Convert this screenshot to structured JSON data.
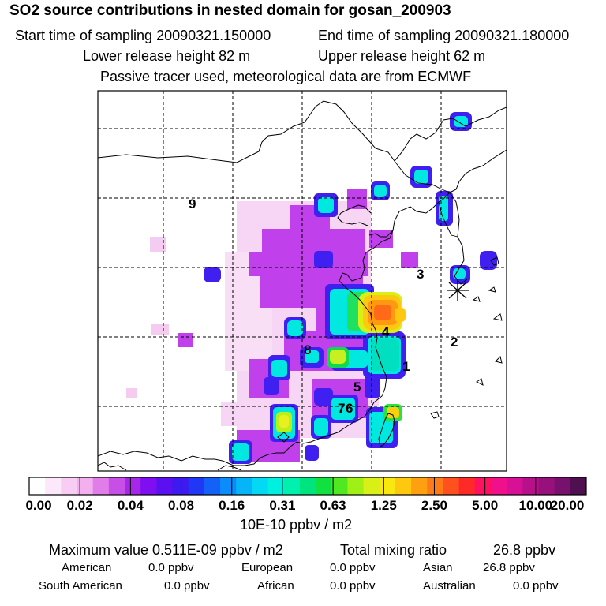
{
  "header": {
    "title": "SO2 source contributions in nested domain for gosan_200903",
    "start_label": "Start time of sampling 20090321.150000",
    "end_label": "End time of sampling 20090321.180000",
    "lower_height": "Lower release height   82 m",
    "upper_height": "Upper release height   62 m",
    "tracer_note": "Passive tracer used, meteorological data are from ECMWF"
  },
  "map": {
    "region_labels": [
      "1",
      "2",
      "3",
      "4",
      "5",
      "6",
      "7",
      "8",
      "9"
    ],
    "receptor_marker": "receptor-star"
  },
  "colorbar": {
    "tick_labels": [
      "0.00",
      "0.02",
      "0.04",
      "0.08",
      "0.16",
      "0.31",
      "0.63",
      "1.25",
      "2.50",
      "5.00",
      "10.00",
      "20.00"
    ],
    "unit": "10E-10 ppbv / m2",
    "colors": [
      "#ffffff",
      "#fde8fb",
      "#f8cdf4",
      "#f2b0ee",
      "#e07de8",
      "#c84fe6",
      "#a726ea",
      "#7f0ff0",
      "#5a10f0",
      "#3d1af0",
      "#2038f5",
      "#1461f8",
      "#0a8cfa",
      "#06b4f8",
      "#05d8f2",
      "#00f0e0",
      "#00f0b0",
      "#00e480",
      "#10e040",
      "#50e820",
      "#a0f018",
      "#d8f018",
      "#f8e810",
      "#ffc810",
      "#ffa010",
      "#ff7a18",
      "#ff5020",
      "#ff2a28",
      "#ff1060",
      "#f0108c",
      "#d81096",
      "#b8108a",
      "#98107c",
      "#78106e",
      "#501050"
    ]
  },
  "footer": {
    "max_label": "Maximum value  0.511E-09 ppbv / m2",
    "total_label": "Total mixing ratio",
    "total_value": "26.8 ppbv",
    "american_label": "American",
    "american_value": "0.0 ppbv",
    "european_label": "European",
    "european_value": "0.0 ppbv",
    "asian_label": "Asian",
    "asian_value": "26.8 ppbv",
    "south_american_label": "South American",
    "south_american_value": "0.0 ppbv",
    "african_label": "African",
    "african_value": "0.0 ppbv",
    "australian_label": "Australian",
    "australian_value": "0.0 ppbv"
  }
}
